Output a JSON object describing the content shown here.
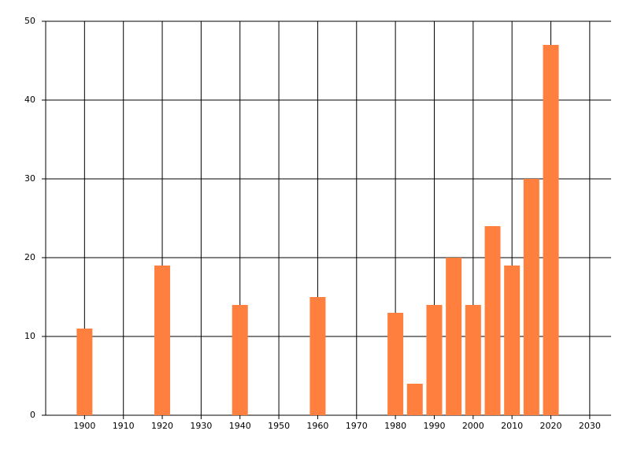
{
  "chart_data": {
    "type": "bar",
    "x": [
      1900,
      1920,
      1940,
      1960,
      1980,
      1985,
      1990,
      1995,
      2000,
      2005,
      2010,
      2015,
      2020
    ],
    "values": [
      11,
      19,
      14,
      15,
      13,
      4,
      14,
      20,
      14,
      24,
      19,
      30,
      47
    ],
    "color": "#ff7f3f",
    "xlim": [
      1890,
      2035.5
    ],
    "xticks": [
      1900,
      1910,
      1920,
      1930,
      1940,
      1950,
      1960,
      1970,
      1980,
      1990,
      2000,
      2010,
      2020,
      2030
    ],
    "ylim": [
      0,
      50
    ],
    "yticks": [
      0,
      10,
      20,
      30,
      40,
      50
    ],
    "grid": true
  }
}
